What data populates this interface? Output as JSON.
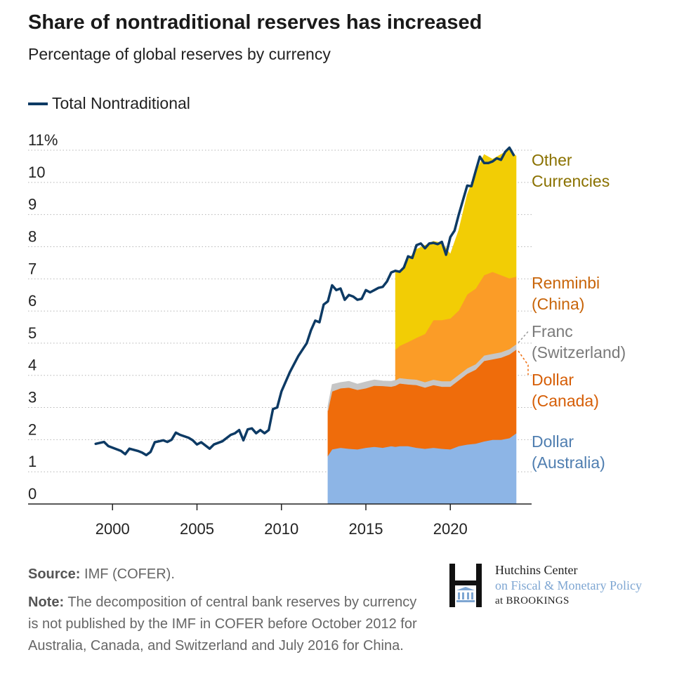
{
  "title": "Share of nontraditional reserves has increased",
  "subtitle": "Percentage of global reserves by currency",
  "legend": {
    "total_label": "Total Nontraditional"
  },
  "footer": {
    "source_label": "Source:",
    "source_text": "IMF (COFER).",
    "note_label": "Note:",
    "note_text": "The decomposition of central bank reserves by currency is not published by the IMF in COFER before October 2012 for Australia, Canada, and Switzerland and July 2016 for China."
  },
  "logo": {
    "line1": "Hutchins Center",
    "line2": "on Fiscal & Monetary Policy",
    "line3": "at BROOKINGS"
  },
  "colors": {
    "total": "#0d3a64",
    "australia": "#8db5e6",
    "canada": "#ef6c0b",
    "switzerland": "#c6c6c6",
    "china": "#fb9c27",
    "other": "#f2cd05",
    "label_other": "#8a7100",
    "label_renminbi": "#c8650a",
    "label_franc": "#7a7a7a",
    "label_canada": "#d65e06",
    "label_australia": "#4f7eb0"
  },
  "chart_data": {
    "type": "area",
    "xlim": [
      1995,
      2024.5
    ],
    "ylim": [
      0,
      11
    ],
    "x_ticks": [
      "2000",
      "2005",
      "2010",
      "2015",
      "2020"
    ],
    "y_ticks": [
      "0",
      "1",
      "2",
      "3",
      "4",
      "5",
      "6",
      "7",
      "8",
      "9",
      "10",
      "11%"
    ],
    "grid": "dotted horizontal",
    "legend_position": "top-left",
    "total_series": {
      "name": "Total Nontraditional",
      "points": [
        [
          1999.0,
          1.87
        ],
        [
          1999.5,
          1.93
        ],
        [
          1999.75,
          1.8
        ],
        [
          2000.5,
          1.65
        ],
        [
          2000.75,
          1.55
        ],
        [
          2001.0,
          1.72
        ],
        [
          2001.5,
          1.65
        ],
        [
          2001.75,
          1.6
        ],
        [
          2002.0,
          1.52
        ],
        [
          2002.25,
          1.62
        ],
        [
          2002.5,
          1.92
        ],
        [
          2003.0,
          1.98
        ],
        [
          2003.25,
          1.93
        ],
        [
          2003.5,
          2.0
        ],
        [
          2003.75,
          2.22
        ],
        [
          2004.0,
          2.15
        ],
        [
          2004.5,
          2.06
        ],
        [
          2004.75,
          1.98
        ],
        [
          2005.0,
          1.85
        ],
        [
          2005.25,
          1.92
        ],
        [
          2005.75,
          1.72
        ],
        [
          2006.0,
          1.85
        ],
        [
          2006.5,
          1.95
        ],
        [
          2007.0,
          2.15
        ],
        [
          2007.25,
          2.2
        ],
        [
          2007.5,
          2.3
        ],
        [
          2007.75,
          1.98
        ],
        [
          2008.0,
          2.32
        ],
        [
          2008.25,
          2.35
        ],
        [
          2008.5,
          2.2
        ],
        [
          2008.75,
          2.3
        ],
        [
          2009.0,
          2.2
        ],
        [
          2009.25,
          2.3
        ],
        [
          2009.5,
          2.95
        ],
        [
          2009.75,
          3.0
        ],
        [
          2010.0,
          3.5
        ],
        [
          2010.5,
          4.1
        ],
        [
          2011.0,
          4.6
        ],
        [
          2011.5,
          5.0
        ],
        [
          2011.75,
          5.4
        ],
        [
          2012.0,
          5.7
        ],
        [
          2012.25,
          5.65
        ],
        [
          2012.5,
          6.2
        ],
        [
          2012.75,
          6.3
        ],
        [
          2013.0,
          6.8
        ],
        [
          2013.25,
          6.65
        ],
        [
          2013.5,
          6.7
        ],
        [
          2013.75,
          6.35
        ],
        [
          2014.0,
          6.5
        ],
        [
          2014.25,
          6.45
        ],
        [
          2014.5,
          6.35
        ],
        [
          2014.75,
          6.38
        ],
        [
          2015.0,
          6.65
        ],
        [
          2015.25,
          6.58
        ],
        [
          2015.5,
          6.65
        ],
        [
          2015.75,
          6.72
        ],
        [
          2016.0,
          6.75
        ],
        [
          2016.25,
          6.92
        ],
        [
          2016.5,
          7.2
        ],
        [
          2016.75,
          7.25
        ],
        [
          2017.0,
          7.22
        ],
        [
          2017.25,
          7.35
        ],
        [
          2017.5,
          7.7
        ],
        [
          2017.75,
          7.65
        ],
        [
          2018.0,
          8.05
        ],
        [
          2018.25,
          8.1
        ],
        [
          2018.5,
          7.95
        ],
        [
          2018.75,
          8.1
        ],
        [
          2019.0,
          8.12
        ],
        [
          2019.25,
          8.08
        ],
        [
          2019.5,
          8.15
        ],
        [
          2019.75,
          7.75
        ],
        [
          2020.0,
          8.3
        ],
        [
          2020.25,
          8.5
        ],
        [
          2020.5,
          9.0
        ],
        [
          2020.75,
          9.45
        ],
        [
          2021.0,
          9.9
        ],
        [
          2021.25,
          9.88
        ],
        [
          2021.5,
          10.35
        ],
        [
          2021.75,
          10.8
        ],
        [
          2022.0,
          10.6
        ],
        [
          2022.25,
          10.6
        ],
        [
          2022.5,
          10.65
        ],
        [
          2022.75,
          10.75
        ],
        [
          2023.0,
          10.7
        ],
        [
          2023.25,
          10.95
        ],
        [
          2023.5,
          11.08
        ],
        [
          2023.75,
          10.85
        ]
      ]
    },
    "stacked_x": [
      2012.75,
      2013.0,
      2013.5,
      2014.0,
      2014.5,
      2015.0,
      2015.5,
      2016.0,
      2016.5,
      2016.75,
      2017.0,
      2017.5,
      2018.0,
      2018.5,
      2019.0,
      2019.5,
      2020.0,
      2020.5,
      2021.0,
      2021.5,
      2022.0,
      2022.5,
      2023.0,
      2023.5,
      2023.9
    ],
    "stacked_series": [
      {
        "name": "Dollar (Australia)",
        "key": "australia",
        "start_index": 0,
        "values": [
          1.5,
          1.7,
          1.75,
          1.72,
          1.7,
          1.75,
          1.78,
          1.75,
          1.8,
          1.78,
          1.8,
          1.8,
          1.75,
          1.72,
          1.75,
          1.72,
          1.7,
          1.8,
          1.85,
          1.88,
          1.95,
          2.0,
          2.0,
          2.05,
          2.2
        ]
      },
      {
        "name": "Dollar (Canada)",
        "key": "canada",
        "start_index": 0,
        "values": [
          1.4,
          1.8,
          1.85,
          1.9,
          1.85,
          1.85,
          1.9,
          1.92,
          1.85,
          1.9,
          1.95,
          1.92,
          1.95,
          1.9,
          1.95,
          1.93,
          1.95,
          2.05,
          2.2,
          2.3,
          2.5,
          2.5,
          2.55,
          2.6,
          2.6
        ]
      },
      {
        "name": "Franc (Switzerland)",
        "key": "switzerland",
        "start_index": 0,
        "values": [
          0.15,
          0.22,
          0.18,
          0.2,
          0.18,
          0.2,
          0.18,
          0.16,
          0.17,
          0.17,
          0.17,
          0.17,
          0.17,
          0.17,
          0.17,
          0.17,
          0.17,
          0.17,
          0.17,
          0.17,
          0.17,
          0.17,
          0.17,
          0.17,
          0.17
        ]
      },
      {
        "name": "Renminbi (China)",
        "key": "china",
        "start_index": 9,
        "values": [
          0.95,
          1.0,
          1.15,
          1.3,
          1.5,
          1.85,
          1.9,
          1.95,
          2.0,
          2.3,
          2.35,
          2.5,
          2.55,
          2.4,
          2.2,
          2.1
        ]
      },
      {
        "name": "Other Currencies",
        "key": "other",
        "start_index": 9,
        "values": [
          2.45,
          2.3,
          2.55,
          2.75,
          2.75,
          2.45,
          2.4,
          2.0,
          2.5,
          3.1,
          3.6,
          3.75,
          3.5,
          3.75,
          4.0,
          3.75
        ]
      }
    ],
    "series_labels": [
      {
        "key": "other",
        "line1": "Other",
        "line2": "Currencies"
      },
      {
        "key": "china",
        "line1": "Renminbi",
        "line2": "(China)"
      },
      {
        "key": "switzerland",
        "line1": "Franc",
        "line2": "(Switzerland)"
      },
      {
        "key": "canada",
        "line1": "Dollar",
        "line2": "(Canada)"
      },
      {
        "key": "australia",
        "line1": "Dollar",
        "line2": "(Australia)"
      }
    ]
  }
}
